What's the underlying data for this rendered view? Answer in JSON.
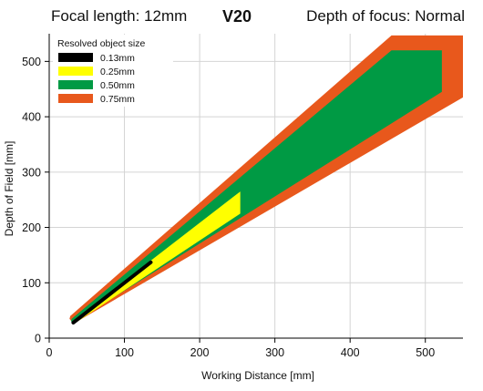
{
  "header": {
    "focal_length": "Focal length: 12mm",
    "model": "V20",
    "depth_of_focus": "Depth of focus: Normal"
  },
  "chart_data": {
    "type": "area",
    "xlabel": "Working Distance [mm]",
    "ylabel": "Depth of Field [mm]",
    "xlim": [
      0,
      550
    ],
    "ylim": [
      0,
      550
    ],
    "xticks": [
      0,
      100,
      200,
      300,
      400,
      500
    ],
    "yticks": [
      0,
      100,
      200,
      300,
      400,
      500
    ],
    "grid": true,
    "legend": {
      "title": "Resolved object size",
      "position": "top-left",
      "entries": [
        {
          "label": "0.13mm",
          "color": "#000000"
        },
        {
          "label": "0.25mm",
          "color": "#ffff00"
        },
        {
          "label": "0.50mm",
          "color": "#009a44"
        },
        {
          "label": "0.75mm",
          "color": "#e8581c"
        }
      ]
    },
    "series": [
      {
        "name": "0.75mm",
        "color": "#e8581c",
        "polygon": [
          [
            27,
            35
          ],
          [
            28,
            40
          ],
          [
            455,
            547
          ],
          [
            550,
            547
          ],
          [
            550,
            435
          ],
          [
            32,
            26
          ]
        ]
      },
      {
        "name": "0.50mm",
        "color": "#009a44",
        "polygon": [
          [
            29,
            31
          ],
          [
            30,
            35
          ],
          [
            455,
            520
          ],
          [
            522,
            520
          ],
          [
            522,
            445
          ],
          [
            31,
            27
          ]
        ]
      },
      {
        "name": "0.25mm",
        "color": "#ffff00",
        "polygon": [
          [
            31,
            28
          ],
          [
            32,
            32
          ],
          [
            254,
            265
          ],
          [
            254,
            225
          ],
          [
            33,
            26
          ]
        ]
      },
      {
        "name": "0.13mm",
        "color": "#000000",
        "polyline": [
          [
            32,
            28
          ],
          [
            135,
            137
          ]
        ]
      }
    ]
  }
}
